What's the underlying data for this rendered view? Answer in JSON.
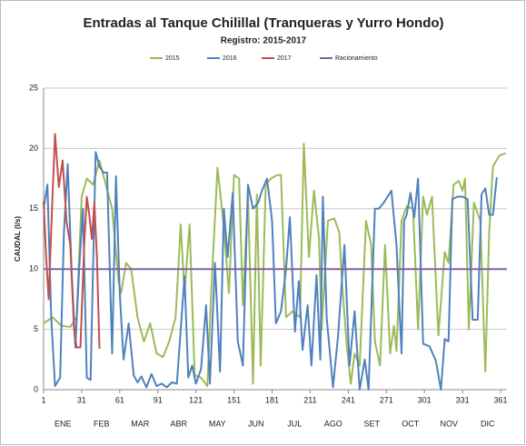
{
  "chart_data": {
    "type": "line",
    "title": "Entradas al Tanque Chilillal (Tranqueras y Yurro Hondo)",
    "subtitle": "Registro: 2015-2017",
    "y_label": "CAUDAL (l/s)",
    "xlim": [
      1,
      366
    ],
    "ylim": [
      0,
      25
    ],
    "xticks": [
      1,
      31,
      61,
      91,
      121,
      151,
      181,
      211,
      241,
      271,
      301,
      331,
      361
    ],
    "yticks": [
      0,
      5,
      10,
      15,
      20,
      25
    ],
    "month_labels": [
      "ENE",
      "FEB",
      "MAR",
      "ABR",
      "MAY",
      "JUN",
      "JUL",
      "AGO",
      "SET",
      "OCT",
      "NOV",
      "DIC"
    ],
    "grid": true,
    "legend": "top",
    "series": [
      {
        "name": "2015",
        "color": "#9bbb59",
        "x": [
          1,
          8,
          15,
          22,
          27,
          31,
          35,
          40,
          45,
          50,
          55,
          60,
          62,
          66,
          70,
          75,
          80,
          85,
          90,
          95,
          100,
          105,
          109,
          112,
          116,
          120,
          125,
          130,
          133,
          138,
          143,
          147,
          151,
          155,
          158,
          162,
          166,
          169,
          172,
          176,
          180,
          185,
          188,
          192,
          197,
          203,
          206,
          210,
          214,
          218,
          220,
          225,
          230,
          234,
          236,
          240,
          243,
          246,
          250,
          255,
          259,
          262,
          266,
          270,
          274,
          277,
          279,
          283,
          287,
          292,
          296,
          300,
          303,
          307,
          312,
          317,
          320,
          324,
          328,
          331,
          333,
          336,
          340,
          345,
          349,
          352,
          355,
          360,
          365
        ],
        "values": [
          5.5,
          6,
          5.3,
          5.2,
          6,
          16,
          17.5,
          17,
          19,
          17,
          15,
          9,
          8,
          10.5,
          10,
          6,
          4,
          5.5,
          3,
          2.7,
          4,
          6,
          13.7,
          8,
          13.7,
          1.2,
          1,
          0.3,
          8,
          18.4,
          13.5,
          8,
          17.8,
          17.5,
          7,
          16.2,
          0.5,
          16.2,
          2,
          17,
          17.5,
          17.8,
          17.8,
          6,
          6.5,
          6,
          20.4,
          11,
          16.5,
          12.5,
          5,
          14,
          14.2,
          13,
          9,
          3.5,
          0.5,
          3,
          2,
          14,
          12,
          4,
          2,
          12,
          3,
          5.3,
          3.2,
          14,
          15.2,
          15,
          5,
          16,
          14.5,
          16,
          4.5,
          11.4,
          10.5,
          17,
          17.3,
          16.5,
          17.5,
          5,
          15.5,
          14,
          1.5,
          13,
          18.5,
          19.4,
          19.6
        ]
      },
      {
        "name": "2016",
        "color": "#4f81bd",
        "x": [
          1,
          4,
          7,
          10,
          14,
          17,
          20,
          23,
          26,
          29,
          32,
          35,
          38,
          42,
          45,
          48,
          51,
          55,
          58,
          61,
          64,
          68,
          72,
          75,
          78,
          82,
          86,
          90,
          94,
          98,
          102,
          106,
          112,
          115,
          118,
          121,
          125,
          129,
          132,
          136,
          140,
          143,
          146,
          150,
          154,
          158,
          162,
          166,
          170,
          173,
          177,
          181,
          184,
          188,
          192,
          195,
          199,
          202,
          205,
          209,
          212,
          216,
          219,
          221,
          224,
          229,
          233,
          238,
          242,
          246,
          250,
          254,
          257,
          262,
          265,
          269,
          272,
          275,
          279,
          283,
          285,
          287,
          290,
          293,
          296,
          300,
          305,
          310,
          314,
          317,
          320,
          323,
          327,
          331,
          335,
          339,
          343,
          346,
          349,
          352,
          355,
          358
        ],
        "values": [
          15,
          17,
          6,
          0.3,
          1,
          13,
          18.7,
          10,
          3.5,
          10,
          15,
          1,
          0.8,
          19.7,
          18.5,
          18,
          18,
          3,
          17.7,
          8,
          2.5,
          5.5,
          1.2,
          0.6,
          1.1,
          0.2,
          1.3,
          0.3,
          0.5,
          0.2,
          0.6,
          0.5,
          9.4,
          1,
          2,
          0.5,
          1.7,
          7,
          0.5,
          10.5,
          1.5,
          15,
          11,
          16.3,
          4,
          2,
          17,
          15,
          15.5,
          16.5,
          17.5,
          14,
          5.5,
          6.5,
          10,
          14.3,
          4.8,
          9,
          3.3,
          7,
          2,
          9.5,
          2.5,
          16,
          6,
          0.2,
          4.5,
          12,
          2,
          6.5,
          0,
          2.5,
          0,
          15,
          15,
          15.5,
          16,
          16.5,
          12,
          3,
          14,
          14.5,
          16.3,
          14.3,
          17.5,
          3.8,
          3.6,
          2.4,
          0,
          4.2,
          4,
          15.8,
          16,
          16,
          15.8,
          5.8,
          5.8,
          16.2,
          16.7,
          14.5,
          14.5,
          17.6
        ]
      },
      {
        "name": "2017",
        "color": "#c0504d",
        "x": [
          1,
          3,
          5,
          8,
          10,
          13,
          16,
          19,
          22,
          25,
          27,
          30,
          33,
          35,
          37,
          39,
          41,
          43,
          45
        ],
        "values": [
          15.6,
          11,
          7.5,
          16,
          21.2,
          16.8,
          19,
          14,
          12,
          5,
          3.5,
          3.5,
          12,
          16,
          14.5,
          12.5,
          15.5,
          11,
          3.4
        ]
      },
      {
        "name": "Racionamiento",
        "color": "#8064a2",
        "x": [
          1,
          366
        ],
        "values": [
          10,
          10
        ]
      }
    ]
  }
}
